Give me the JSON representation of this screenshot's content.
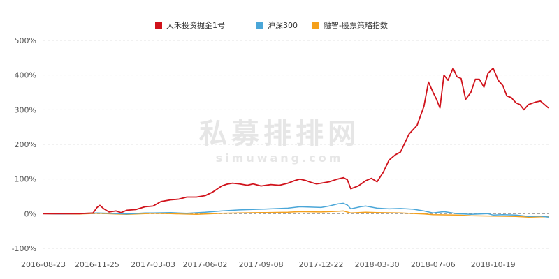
{
  "watermark": {
    "main": "私募排排网",
    "sub": "simuwang.com"
  },
  "chart_data": {
    "type": "line",
    "title": "",
    "xlabel": "",
    "ylabel": "",
    "legend_position": "top-center",
    "grid": true,
    "ylim": [
      -100,
      500
    ],
    "yticks": [
      -100,
      0,
      100,
      200,
      300,
      400,
      500
    ],
    "ytick_labels": [
      "-100%",
      "0%",
      "100%",
      "200%",
      "300%",
      "400%",
      "500%"
    ],
    "xlim": [
      "2016-08-23",
      "2019-01-24"
    ],
    "xtick_labels": [
      "2016-08-23",
      "2016-11-25",
      "2017-03-03",
      "2017-06-02",
      "2017-09-08",
      "2017-12-22",
      "2018-03-30",
      "2018-07-06",
      "2018-10-19"
    ],
    "series": [
      {
        "name": "大禾投资掘金1号",
        "color": "#d0121b",
        "points": [
          [
            "2016-08-23",
            0
          ],
          [
            "2016-09-20",
            0
          ],
          [
            "2016-10-25",
            0
          ],
          [
            "2016-11-18",
            2
          ],
          [
            "2016-11-25",
            18
          ],
          [
            "2016-11-30",
            24
          ],
          [
            "2016-12-07",
            14
          ],
          [
            "2016-12-16",
            5
          ],
          [
            "2016-12-28",
            8
          ],
          [
            "2017-01-06",
            3
          ],
          [
            "2017-01-16",
            10
          ],
          [
            "2017-02-01",
            12
          ],
          [
            "2017-02-17",
            20
          ],
          [
            "2017-03-03",
            22
          ],
          [
            "2017-03-17",
            35
          ],
          [
            "2017-04-03",
            40
          ],
          [
            "2017-04-17",
            42
          ],
          [
            "2017-05-01",
            48
          ],
          [
            "2017-05-18",
            48
          ],
          [
            "2017-06-02",
            52
          ],
          [
            "2017-06-15",
            62
          ],
          [
            "2017-07-01",
            80
          ],
          [
            "2017-07-10",
            85
          ],
          [
            "2017-07-20",
            88
          ],
          [
            "2017-08-01",
            86
          ],
          [
            "2017-08-15",
            82
          ],
          [
            "2017-08-25",
            86
          ],
          [
            "2017-09-08",
            80
          ],
          [
            "2017-09-25",
            84
          ],
          [
            "2017-10-10",
            82
          ],
          [
            "2017-10-25",
            88
          ],
          [
            "2017-11-05",
            95
          ],
          [
            "2017-11-15",
            100
          ],
          [
            "2017-11-25",
            96
          ],
          [
            "2017-12-05",
            90
          ],
          [
            "2017-12-14",
            86
          ],
          [
            "2017-12-22",
            88
          ],
          [
            "2018-01-05",
            92
          ],
          [
            "2018-01-20",
            100
          ],
          [
            "2018-01-30",
            104
          ],
          [
            "2018-02-06",
            98
          ],
          [
            "2018-02-12",
            72
          ],
          [
            "2018-02-25",
            80
          ],
          [
            "2018-03-10",
            95
          ],
          [
            "2018-03-20",
            102
          ],
          [
            "2018-03-30",
            92
          ],
          [
            "2018-04-10",
            120
          ],
          [
            "2018-04-20",
            155
          ],
          [
            "2018-05-01",
            170
          ],
          [
            "2018-05-10",
            178
          ],
          [
            "2018-05-25",
            230
          ],
          [
            "2018-06-08",
            255
          ],
          [
            "2018-06-20",
            310
          ],
          [
            "2018-06-28",
            380
          ],
          [
            "2018-07-06",
            350
          ],
          [
            "2018-07-12",
            330
          ],
          [
            "2018-07-18",
            305
          ],
          [
            "2018-07-25",
            400
          ],
          [
            "2018-08-01",
            385
          ],
          [
            "2018-08-10",
            420
          ],
          [
            "2018-08-17",
            395
          ],
          [
            "2018-08-24",
            390
          ],
          [
            "2018-09-01",
            330
          ],
          [
            "2018-09-10",
            350
          ],
          [
            "2018-09-18",
            388
          ],
          [
            "2018-09-25",
            388
          ],
          [
            "2018-10-03",
            365
          ],
          [
            "2018-10-10",
            405
          ],
          [
            "2018-10-19",
            420
          ],
          [
            "2018-10-28",
            385
          ],
          [
            "2018-11-05",
            370
          ],
          [
            "2018-11-12",
            340
          ],
          [
            "2018-11-20",
            335
          ],
          [
            "2018-11-28",
            320
          ],
          [
            "2018-12-05",
            315
          ],
          [
            "2018-12-12",
            300
          ],
          [
            "2018-12-20",
            315
          ],
          [
            "2019-01-01",
            322
          ],
          [
            "2019-01-10",
            325
          ],
          [
            "2019-01-24",
            305
          ]
        ]
      },
      {
        "name": "沪深300",
        "color": "#4aa6d8",
        "points": [
          [
            "2016-08-23",
            0
          ],
          [
            "2016-09-20",
            -1
          ],
          [
            "2016-10-25",
            0
          ],
          [
            "2016-11-25",
            2
          ],
          [
            "2016-12-16",
            1
          ],
          [
            "2017-01-16",
            -1
          ],
          [
            "2017-02-17",
            2
          ],
          [
            "2017-03-03",
            2
          ],
          [
            "2017-04-03",
            3
          ],
          [
            "2017-05-01",
            1
          ],
          [
            "2017-06-02",
            4
          ],
          [
            "2017-07-01",
            8
          ],
          [
            "2017-08-01",
            11
          ],
          [
            "2017-09-08",
            13
          ],
          [
            "2017-10-25",
            16
          ],
          [
            "2017-11-15",
            20
          ],
          [
            "2017-12-22",
            18
          ],
          [
            "2018-01-05",
            22
          ],
          [
            "2018-01-20",
            28
          ],
          [
            "2018-01-30",
            30
          ],
          [
            "2018-02-06",
            25
          ],
          [
            "2018-02-12",
            14
          ],
          [
            "2018-03-01",
            20
          ],
          [
            "2018-03-10",
            22
          ],
          [
            "2018-03-30",
            16
          ],
          [
            "2018-04-20",
            14
          ],
          [
            "2018-05-10",
            15
          ],
          [
            "2018-06-01",
            13
          ],
          [
            "2018-06-20",
            8
          ],
          [
            "2018-07-06",
            2
          ],
          [
            "2018-07-25",
            6
          ],
          [
            "2018-08-17",
            0
          ],
          [
            "2018-09-10",
            -2
          ],
          [
            "2018-10-10",
            0
          ],
          [
            "2018-10-19",
            -4
          ],
          [
            "2018-11-05",
            -3
          ],
          [
            "2018-11-28",
            -4
          ],
          [
            "2018-12-20",
            -8
          ],
          [
            "2019-01-10",
            -7
          ],
          [
            "2019-01-24",
            -10
          ]
        ]
      },
      {
        "name": "融智-股票策略指数",
        "color": "#f5a01a",
        "points": [
          [
            "2016-08-23",
            0
          ],
          [
            "2016-09-20",
            -1
          ],
          [
            "2016-10-25",
            -1
          ],
          [
            "2016-11-25",
            1
          ],
          [
            "2016-12-28",
            -1
          ],
          [
            "2017-01-16",
            -2
          ],
          [
            "2017-02-17",
            0
          ],
          [
            "2017-03-03",
            1
          ],
          [
            "2017-04-03",
            0
          ],
          [
            "2017-05-18",
            -2
          ],
          [
            "2017-06-02",
            -1
          ],
          [
            "2017-07-01",
            1
          ],
          [
            "2017-08-01",
            2
          ],
          [
            "2017-09-08",
            3
          ],
          [
            "2017-10-25",
            4
          ],
          [
            "2017-11-15",
            6
          ],
          [
            "2017-12-22",
            5
          ],
          [
            "2018-01-20",
            7
          ],
          [
            "2018-01-30",
            8
          ],
          [
            "2018-02-12",
            2
          ],
          [
            "2018-03-10",
            4
          ],
          [
            "2018-03-30",
            3
          ],
          [
            "2018-05-10",
            2
          ],
          [
            "2018-06-20",
            -1
          ],
          [
            "2018-07-06",
            -3
          ],
          [
            "2018-08-17",
            -4
          ],
          [
            "2018-09-10",
            -6
          ],
          [
            "2018-10-19",
            -7
          ],
          [
            "2018-11-28",
            -8
          ],
          [
            "2018-12-20",
            -10
          ],
          [
            "2019-01-10",
            -9
          ],
          [
            "2019-01-24",
            -9
          ]
        ]
      }
    ]
  }
}
